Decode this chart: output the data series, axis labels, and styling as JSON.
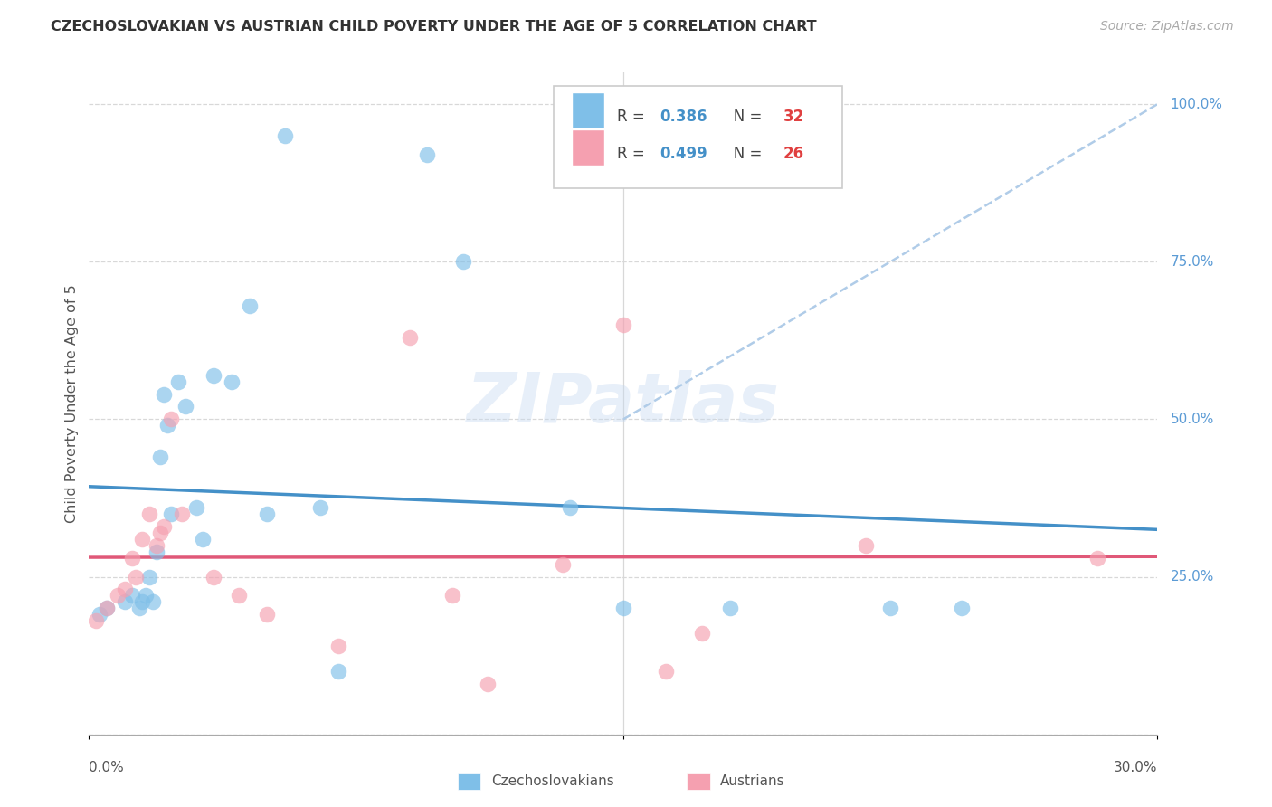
{
  "title": "CZECHOSLOVAKIAN VS AUSTRIAN CHILD POVERTY UNDER THE AGE OF 5 CORRELATION CHART",
  "source": "Source: ZipAtlas.com",
  "ylabel": "Child Poverty Under the Age of 5",
  "legend_blue_r": "0.386",
  "legend_blue_n": "32",
  "legend_pink_r": "0.499",
  "legend_pink_n": "26",
  "watermark": "ZIPatlas",
  "blue_scatter_color": "#7fbfe8",
  "pink_scatter_color": "#f5a0b0",
  "blue_line_color": "#4490c8",
  "pink_line_color": "#e05878",
  "dashed_line_color": "#b0cce8",
  "right_label_color": "#5b9bd5",
  "text_color": "#555555",
  "grid_color": "#d8d8d8",
  "czech_x": [
    0.3,
    0.5,
    1.0,
    1.2,
    1.4,
    1.5,
    1.6,
    1.7,
    1.8,
    1.9,
    2.0,
    2.1,
    2.2,
    2.3,
    2.5,
    2.7,
    3.0,
    3.2,
    3.5,
    4.0,
    4.5,
    5.0,
    6.5,
    9.5,
    10.5,
    13.5,
    15.0,
    18.0,
    22.5,
    24.5,
    7.0,
    5.5
  ],
  "czech_y": [
    19,
    20,
    21,
    22,
    20,
    21,
    22,
    25,
    21,
    29,
    44,
    54,
    49,
    35,
    56,
    52,
    36,
    31,
    57,
    56,
    68,
    35,
    36,
    92,
    75,
    36,
    20,
    20,
    20,
    20,
    10,
    95
  ],
  "austrian_x": [
    0.2,
    0.5,
    0.8,
    1.0,
    1.2,
    1.5,
    1.7,
    1.9,
    2.1,
    2.3,
    2.6,
    4.2,
    5.0,
    7.0,
    9.0,
    10.2,
    11.2,
    13.3,
    15.0,
    16.2,
    17.2,
    21.8,
    28.3,
    3.5,
    1.3,
    2.0
  ],
  "austrian_y": [
    18,
    20,
    22,
    23,
    28,
    31,
    35,
    30,
    33,
    50,
    35,
    22,
    19,
    14,
    63,
    22,
    8,
    27,
    65,
    10,
    16,
    30,
    28,
    25,
    25,
    32
  ],
  "xlim_min": 0,
  "xlim_max": 30,
  "ylim_min": 0,
  "ylim_max": 105,
  "ytick_vals": [
    0,
    25,
    50,
    75,
    100
  ],
  "ytick_labels": [
    "0.0%",
    "25.0%",
    "50.0%",
    "75.0%",
    "100.0%"
  ]
}
